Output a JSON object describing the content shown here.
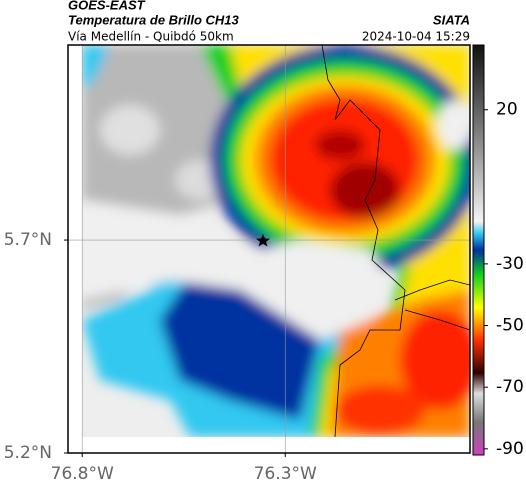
{
  "header": {
    "satellite": "GOES-EAST",
    "title": "Temperatura de Brillo CH13",
    "subtitle": "Vía Medellín - Quibdó 50km",
    "source": "SIATA",
    "datetime": "2024-10-04 15:29"
  },
  "map": {
    "xlim": [
      -76.835,
      -75.845
    ],
    "ylim": [
      5.2,
      6.158
    ],
    "xticks": [
      {
        "value": -76.8,
        "label": "76.8°W"
      },
      {
        "value": -76.3,
        "label": "76.3°W"
      }
    ],
    "yticks": [
      {
        "value": 5.7,
        "label": "5.7°N"
      },
      {
        "value": 5.2,
        "label": "5.2°N"
      }
    ],
    "colorbar": {
      "range": [
        41,
        -92
      ],
      "ticks": [
        20,
        -30,
        -50,
        -70,
        -90
      ]
    }
  }
}
